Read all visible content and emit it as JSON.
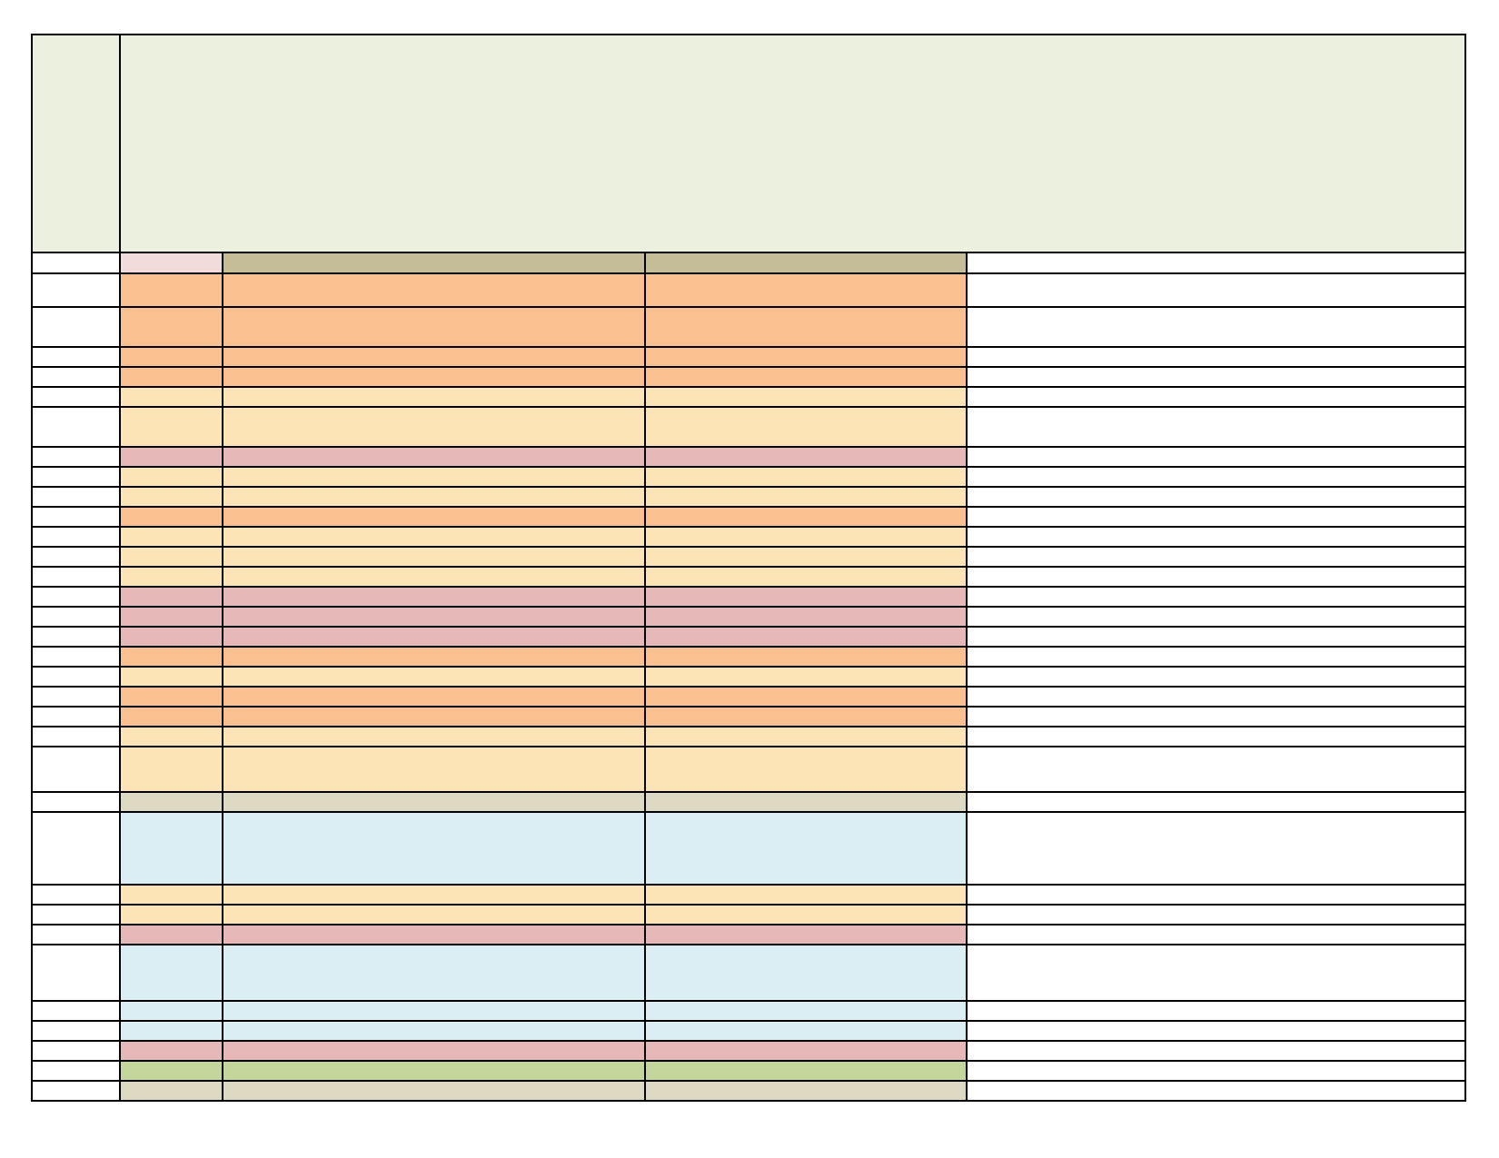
{
  "colors": {
    "border": "#000000",
    "header_fill": "#ebf1de",
    "column_header_pink": "#f2dcdb",
    "column_header_tan": "#c4bd97",
    "orange": "#fac090",
    "light_orange": "#fce4b6",
    "pink": "#e6b8b7",
    "gray_beige": "#ddd9c3",
    "light_blue": "#dbeef4",
    "green": "#c3d69b"
  },
  "sheet": {
    "header": {
      "fill": "header_fill"
    },
    "column_header_row": {
      "fills": [
        "white",
        "column_header_pink",
        "column_header_tan",
        "column_header_tan",
        "white"
      ]
    },
    "rows": [
      {
        "fill": "orange",
        "h": 37
      },
      {
        "fill": "orange",
        "h": 44
      },
      {
        "fill": "orange",
        "h": 22
      },
      {
        "fill": "orange",
        "h": 22
      },
      {
        "fill": "light_orange",
        "h": 22
      },
      {
        "fill": "light_orange",
        "h": 44
      },
      {
        "fill": "pink",
        "h": 22
      },
      {
        "fill": "light_orange",
        "h": 22
      },
      {
        "fill": "light_orange",
        "h": 22
      },
      {
        "fill": "orange",
        "h": 22
      },
      {
        "fill": "light_orange",
        "h": 22
      },
      {
        "fill": "light_orange",
        "h": 22
      },
      {
        "fill": "light_orange",
        "h": 22
      },
      {
        "fill": "pink",
        "h": 22
      },
      {
        "fill": "pink",
        "h": 22
      },
      {
        "fill": "pink",
        "h": 22
      },
      {
        "fill": "orange",
        "h": 22
      },
      {
        "fill": "light_orange",
        "h": 22
      },
      {
        "fill": "orange",
        "h": 22
      },
      {
        "fill": "orange",
        "h": 22
      },
      {
        "fill": "light_orange",
        "h": 22
      },
      {
        "fill": "light_orange",
        "h": 50
      },
      {
        "fill": "gray_beige",
        "h": 22
      },
      {
        "fill": "light_blue",
        "h": 80
      },
      {
        "fill": "light_orange",
        "h": 22
      },
      {
        "fill": "light_orange",
        "h": 22
      },
      {
        "fill": "pink",
        "h": 22
      },
      {
        "fill": "light_blue",
        "h": 62
      },
      {
        "fill": "light_blue",
        "h": 22
      },
      {
        "fill": "light_blue",
        "h": 22
      },
      {
        "fill": "pink",
        "h": 22
      },
      {
        "fill": "green",
        "h": 22
      },
      {
        "fill": "gray_beige",
        "h": 22
      }
    ]
  }
}
